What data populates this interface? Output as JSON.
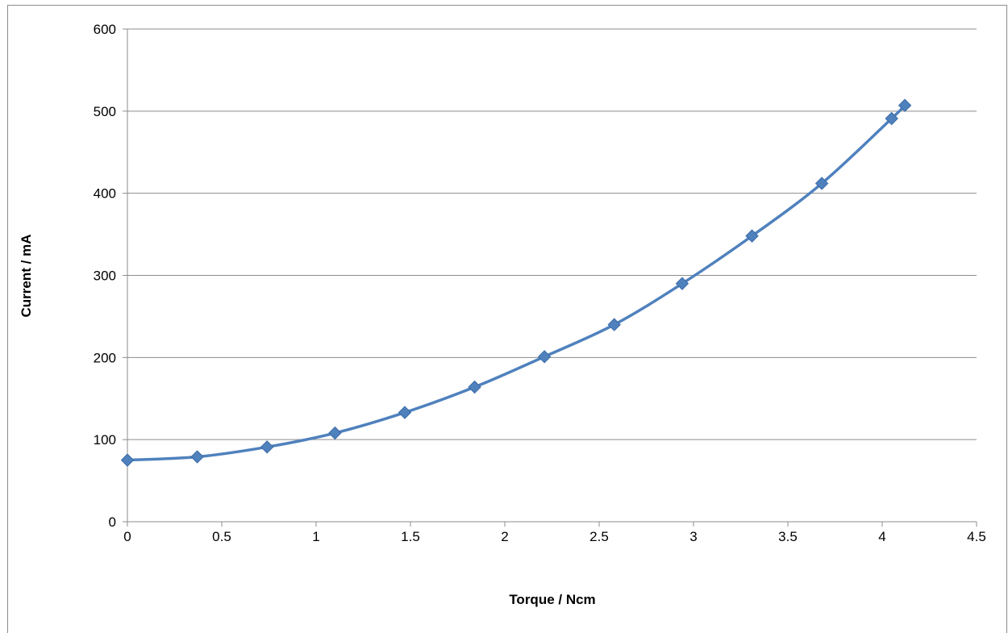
{
  "chart_data": {
    "type": "scatter",
    "title": "",
    "xlabel": "Torque / Ncm",
    "ylabel": "Current / mA",
    "xlim": [
      0,
      4.5
    ],
    "ylim": [
      0,
      600
    ],
    "x_ticks": [
      "0",
      "0.5",
      "1",
      "1.5",
      "2",
      "2.5",
      "3",
      "3.5",
      "4",
      "4.5"
    ],
    "y_ticks": [
      "0",
      "100",
      "200",
      "300",
      "400",
      "500",
      "600"
    ],
    "grid": "horizontal",
    "legend": "none",
    "line_style": "smooth lines with diamond markers",
    "series": [
      {
        "color": "#4f81bd",
        "x": [
          0,
          0.37,
          0.74,
          1.1,
          1.47,
          1.84,
          2.21,
          2.58,
          2.94,
          3.31,
          3.68,
          4.05,
          4.12
        ],
        "y": [
          75,
          79,
          91,
          108,
          133,
          164,
          201,
          240,
          290,
          348,
          412,
          491,
          507
        ]
      }
    ]
  }
}
